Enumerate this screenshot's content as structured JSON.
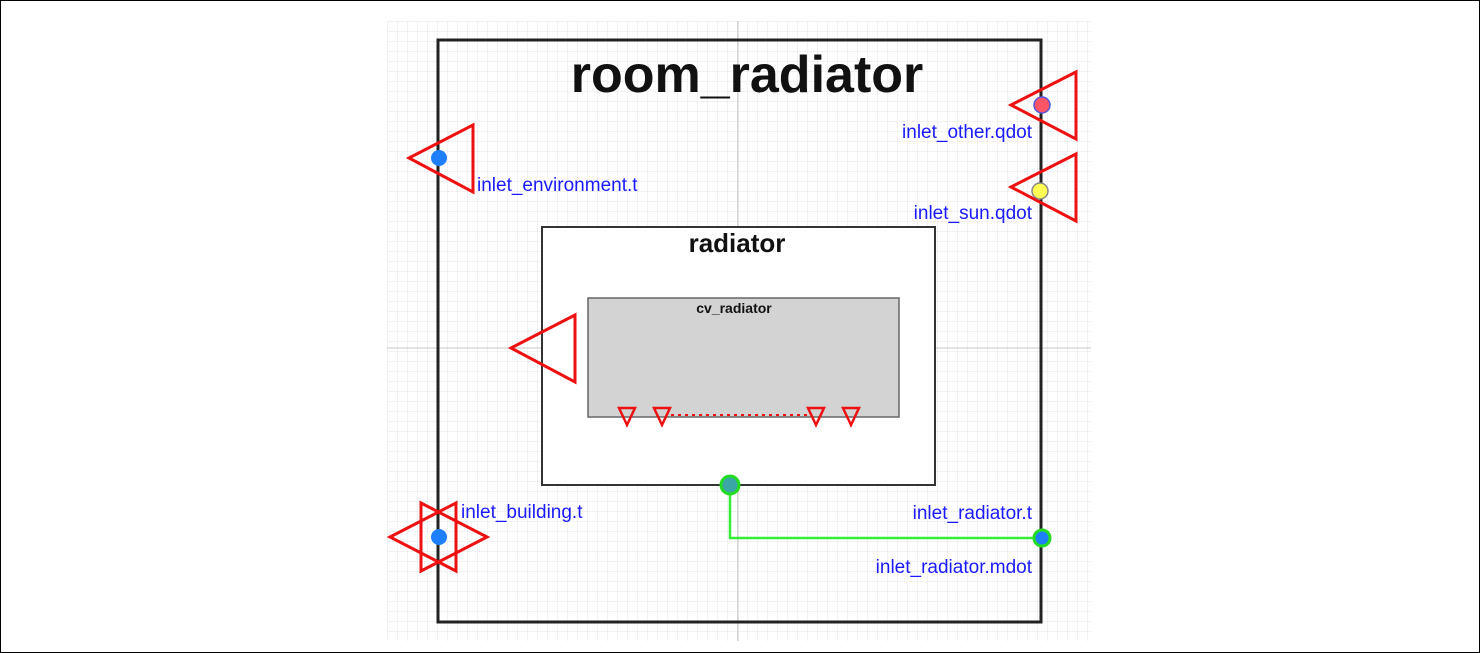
{
  "diagram": {
    "title": "room_radiator",
    "radiator_label": "radiator",
    "cv_radiator_label": "cv_radiator",
    "ports": {
      "inlet_other_qdot": "inlet_other.qdot",
      "inlet_sun_qdot": "inlet_sun.qdot",
      "inlet_environment_t": "inlet_environment.t",
      "inlet_building_t": "inlet_building.t",
      "inlet_radiator_t": "inlet_radiator.t",
      "inlet_radiator_mdot": "inlet_radiator.mdot"
    }
  },
  "colors": {
    "port_label": "#1a1aff",
    "connector_red": "#ee1111",
    "connection_line": "#33ee33",
    "blue_dot": "#1e7fff",
    "red_dot": "#ff5566",
    "yellow_dot": "#ffff55",
    "green_ring": "#22dd22",
    "cv_fill": "#d3d3d3",
    "grid_line": "#e4e4e4"
  },
  "icons": {
    "triangle_connector": "red-triangle-outline",
    "port_dot": "filled-circle"
  }
}
